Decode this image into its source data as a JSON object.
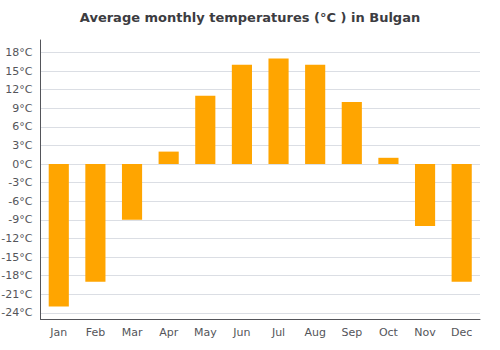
{
  "chart_data": {
    "type": "bar",
    "title": "Average monthly temperatures (°C ) in Bulgan",
    "categories": [
      "Jan",
      "Feb",
      "Mar",
      "Apr",
      "May",
      "Jun",
      "Jul",
      "Aug",
      "Sep",
      "Oct",
      "Nov",
      "Dec"
    ],
    "values": [
      -23,
      -19,
      -9,
      2,
      11,
      16,
      17,
      16,
      10,
      1,
      -10,
      -19
    ],
    "color": "#FFA500",
    "ylim": [
      -25,
      20
    ],
    "yticks": [
      {
        "value": -24,
        "label": "-24°C"
      },
      {
        "value": -21,
        "label": "-21°C"
      },
      {
        "value": -18,
        "label": "-18°C"
      },
      {
        "value": -15,
        "label": "-15°C"
      },
      {
        "value": -12,
        "label": "-12°C"
      },
      {
        "value": -9,
        "label": "-9°C"
      },
      {
        "value": -6,
        "label": "-6°C"
      },
      {
        "value": -3,
        "label": "-3°C"
      },
      {
        "value": 0,
        "label": "0°C"
      },
      {
        "value": 3,
        "label": "3°C"
      },
      {
        "value": 6,
        "label": "6°C"
      },
      {
        "value": 9,
        "label": "9°C"
      },
      {
        "value": 12,
        "label": "12°C"
      },
      {
        "value": 15,
        "label": "15°C"
      },
      {
        "value": 18,
        "label": "18°C"
      }
    ],
    "grid": true
  }
}
